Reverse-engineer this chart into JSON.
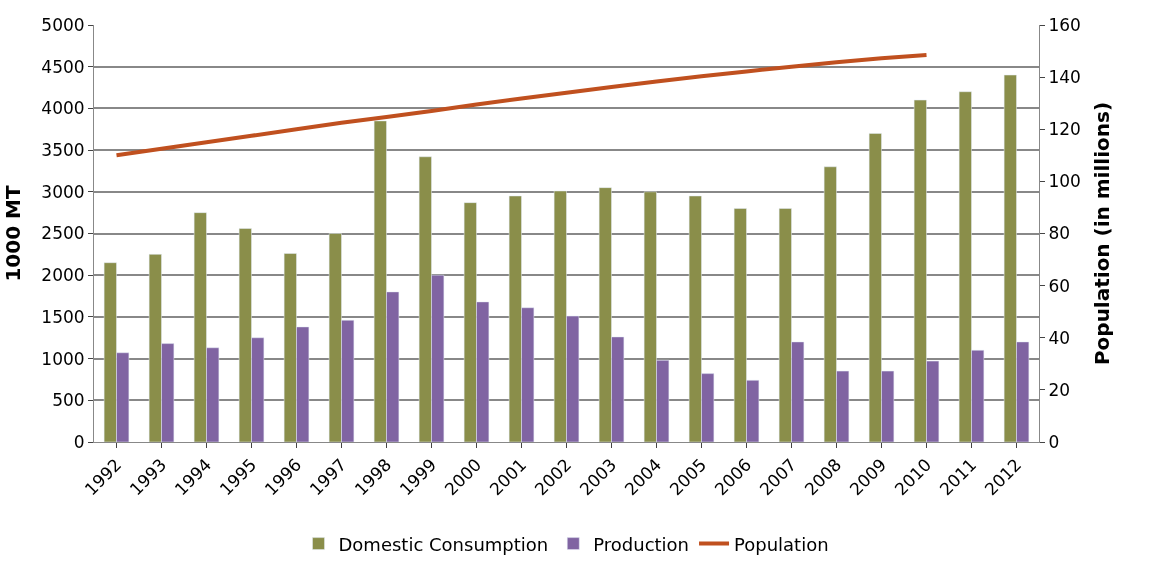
{
  "chart_data": {
    "type": "bar",
    "ylabel": "1000 MT",
    "y2label": "Population (in millions)",
    "categories": [
      "1992",
      "1993",
      "1994",
      "1995",
      "1996",
      "1997",
      "1998",
      "1999",
      "2000",
      "2001",
      "2002",
      "2003",
      "2004",
      "2005",
      "2006",
      "2007",
      "2008",
      "2009",
      "2010",
      "2011",
      "2012"
    ],
    "series": [
      {
        "name": "Domestic Consumption",
        "color": "#8a8e4a",
        "values": [
          2150,
          2250,
          2750,
          2560,
          2260,
          2500,
          3850,
          3420,
          2870,
          2950,
          3010,
          3050,
          3000,
          2950,
          2800,
          2800,
          3300,
          3700,
          4100,
          4200,
          4400
        ]
      },
      {
        "name": "Production",
        "color": "#8064a2",
        "values": [
          1070,
          1180,
          1130,
          1250,
          1380,
          1460,
          1800,
          2000,
          1680,
          1610,
          1510,
          1260,
          980,
          820,
          740,
          1200,
          850,
          850,
          970,
          1100,
          1200
        ]
      },
      {
        "name": "Population",
        "type": "line",
        "axis": "y2",
        "color": "#c0501f",
        "values": [
          110,
          112.5,
          115,
          117.5,
          120,
          122.5,
          124.7,
          127,
          129.5,
          131.8,
          134,
          136.2,
          138.3,
          140.3,
          142.2,
          144,
          145.7,
          147.2,
          148.5,
          null,
          null
        ]
      }
    ],
    "ylim": [
      0,
      5000
    ],
    "yticks": [
      0,
      500,
      1000,
      1500,
      2000,
      2500,
      3000,
      3500,
      4000,
      4500,
      5000
    ],
    "y2lim": [
      0,
      160
    ],
    "y2ticks": [
      0,
      20,
      40,
      60,
      80,
      100,
      120,
      140,
      160
    ],
    "grid": "y",
    "legend": "bottom"
  }
}
